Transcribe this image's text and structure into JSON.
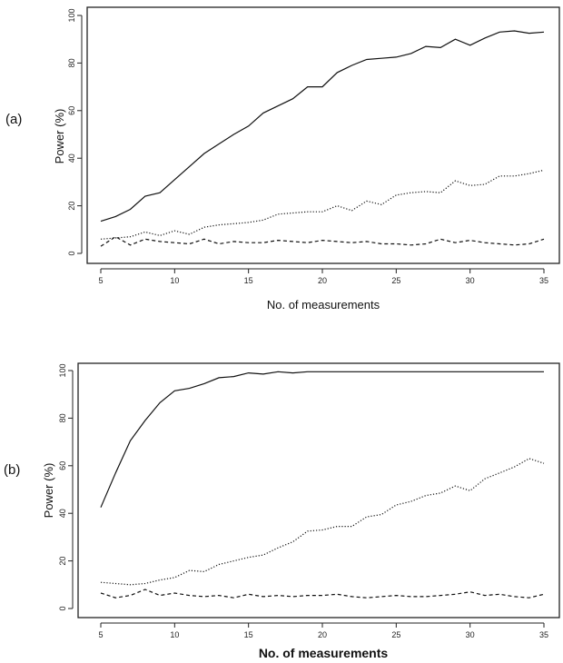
{
  "chart_data": [
    {
      "type": "line",
      "panel_label": "(a)",
      "xlabel": "No. of measurements",
      "ylabel": "Power (%)",
      "xlim": [
        5,
        35
      ],
      "ylim": [
        0,
        100
      ],
      "xticks": [
        5,
        10,
        15,
        20,
        25,
        30,
        35
      ],
      "yticks": [
        0,
        20,
        40,
        60,
        80,
        100
      ],
      "x": [
        5,
        6,
        7,
        8,
        9,
        10,
        11,
        12,
        13,
        14,
        15,
        16,
        17,
        18,
        19,
        20,
        21,
        22,
        23,
        24,
        25,
        26,
        27,
        28,
        29,
        30,
        31,
        32,
        33,
        34,
        35
      ],
      "series": [
        {
          "style": "solid",
          "values": [
            13.5,
            15.5,
            18.5,
            24,
            25.5,
            31,
            36.5,
            42,
            46,
            50,
            53.5,
            59,
            62,
            65,
            70,
            70,
            76,
            79,
            81.5,
            82,
            82.5,
            84,
            87,
            86.5,
            90,
            87.5,
            90.5,
            93,
            93.5,
            92.5,
            93
          ]
        },
        {
          "style": "dotted",
          "values": [
            6,
            6.5,
            7,
            9,
            7.5,
            9.5,
            8,
            11,
            12,
            12.5,
            13,
            14,
            16.5,
            17,
            17.5,
            17.5,
            20,
            18,
            22,
            20.5,
            24.5,
            25.5,
            26,
            25.5,
            30.5,
            28.5,
            29,
            32.5,
            32.5,
            33.5,
            35
          ]
        },
        {
          "style": "dashed",
          "values": [
            3,
            7,
            3.5,
            6,
            5,
            4.5,
            4,
            6,
            4,
            5,
            4.5,
            4.5,
            5.5,
            5,
            4.5,
            5.5,
            5,
            4.5,
            5,
            4,
            4,
            3.5,
            4,
            6,
            4.5,
            5.5,
            4.5,
            4,
            3.5,
            4,
            6
          ]
        }
      ]
    },
    {
      "type": "line",
      "panel_label": "(b)",
      "xlabel": "No. of measurements",
      "ylabel": "Power (%)",
      "xlim": [
        5,
        35
      ],
      "ylim": [
        0,
        100
      ],
      "xticks": [
        5,
        10,
        15,
        20,
        25,
        30,
        35
      ],
      "yticks": [
        0,
        20,
        40,
        60,
        80,
        100
      ],
      "x": [
        5,
        6,
        7,
        8,
        9,
        10,
        11,
        12,
        13,
        14,
        15,
        16,
        17,
        18,
        19,
        20,
        21,
        22,
        23,
        24,
        25,
        26,
        27,
        28,
        29,
        30,
        31,
        32,
        33,
        34,
        35
      ],
      "series": [
        {
          "style": "solid",
          "values": [
            42.5,
            57,
            70.5,
            79,
            86.5,
            91.5,
            92.5,
            94.5,
            97,
            97.5,
            99,
            98.5,
            99.5,
            99,
            99.5,
            99.5,
            99.5,
            99.5,
            99.5,
            99.5,
            99.5,
            99.5,
            99.5,
            99.5,
            99.5,
            99.5,
            99.5,
            99.5,
            99.5,
            99.5,
            99.5
          ]
        },
        {
          "style": "dotted",
          "values": [
            11,
            10.5,
            10,
            10.5,
            12,
            13,
            16,
            15.5,
            18.5,
            20,
            21.5,
            22.5,
            25.5,
            28,
            32.5,
            33,
            34.5,
            34.5,
            38.5,
            39.5,
            43.5,
            45,
            47.5,
            48.5,
            51.5,
            49.5,
            54.5,
            57,
            59.5,
            63,
            61
          ]
        },
        {
          "style": "dashed",
          "values": [
            6.5,
            4.5,
            5.5,
            8,
            5.5,
            6.5,
            5.5,
            5,
            5.5,
            4.5,
            6,
            5,
            5.5,
            5,
            5.5,
            5.5,
            6,
            5,
            4.5,
            5,
            5.5,
            5,
            5,
            5.5,
            6,
            7,
            5.5,
            6,
            5,
            4.5,
            6
          ]
        }
      ]
    }
  ]
}
